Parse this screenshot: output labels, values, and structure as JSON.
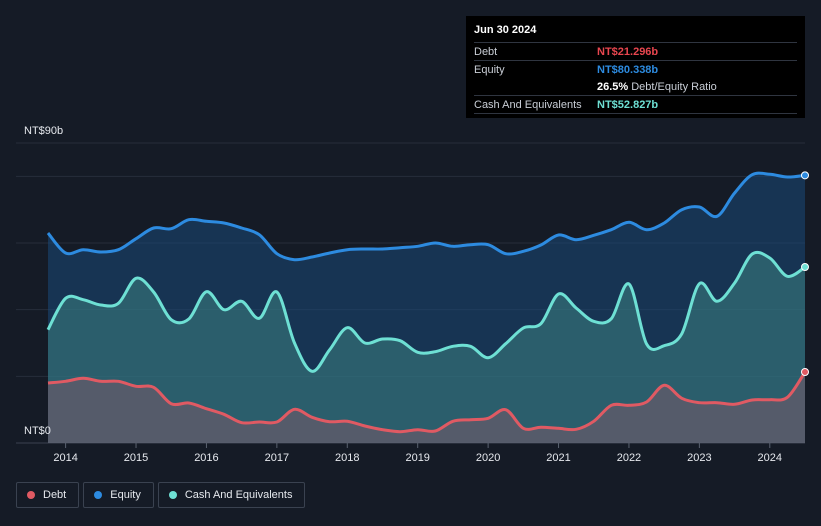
{
  "tooltip": {
    "date": "Jun 30 2024",
    "debt_label": "Debt",
    "debt_value": "NT$21.296b",
    "equity_label": "Equity",
    "equity_value": "NT$80.338b",
    "ratio_value": "26.5%",
    "ratio_label": "Debt/Equity Ratio",
    "cash_label": "Cash And Equivalents",
    "cash_value": "NT$52.827b"
  },
  "legend": [
    {
      "label": "Debt",
      "color": "#e05a63"
    },
    {
      "label": "Equity",
      "color": "#2d8be0"
    },
    {
      "label": "Cash And Equivalents",
      "color": "#6ee0d4"
    }
  ],
  "chart_data": {
    "type": "area",
    "y_top_label": "NT$90b",
    "y_bottom_label": "NT$0",
    "ylim": [
      0,
      90
    ],
    "xlim": [
      2013.75,
      2024.5
    ],
    "x_ticks": [
      "2014",
      "2015",
      "2016",
      "2017",
      "2018",
      "2019",
      "2020",
      "2021",
      "2022",
      "2023",
      "2024"
    ],
    "series": [
      {
        "name": "Debt",
        "color": "#e05a63",
        "x": [
          2013.75,
          2014.0,
          2014.25,
          2014.5,
          2014.75,
          2015.0,
          2015.25,
          2015.5,
          2015.75,
          2016.0,
          2016.25,
          2016.5,
          2016.75,
          2017.0,
          2017.25,
          2017.5,
          2017.75,
          2018.0,
          2018.25,
          2018.5,
          2018.75,
          2019.0,
          2019.25,
          2019.5,
          2019.75,
          2020.0,
          2020.25,
          2020.5,
          2020.75,
          2021.0,
          2021.25,
          2021.5,
          2021.75,
          2022.0,
          2022.25,
          2022.5,
          2022.75,
          2023.0,
          2023.25,
          2023.5,
          2023.75,
          2024.0,
          2024.25,
          2024.5
        ],
        "values": [
          18.0,
          18.5,
          19.4,
          18.5,
          18.5,
          17.0,
          16.7,
          11.8,
          12.0,
          10.3,
          8.6,
          6.1,
          6.3,
          6.3,
          10.1,
          7.7,
          6.4,
          6.5,
          5.1,
          4.0,
          3.4,
          4.0,
          3.6,
          6.5,
          7.0,
          7.4,
          10.0,
          4.4,
          4.7,
          4.4,
          4.1,
          6.5,
          11.3,
          11.3,
          12.3,
          17.3,
          13.4,
          12.1,
          12.1,
          11.6,
          12.9,
          13.0,
          13.7,
          21.3
        ]
      },
      {
        "name": "Equity",
        "color": "#2d8be0",
        "x": [
          2013.75,
          2014.0,
          2014.25,
          2014.5,
          2014.75,
          2015.0,
          2015.25,
          2015.5,
          2015.75,
          2016.0,
          2016.25,
          2016.5,
          2016.75,
          2017.0,
          2017.25,
          2017.5,
          2017.75,
          2018.0,
          2018.25,
          2018.5,
          2018.75,
          2019.0,
          2019.25,
          2019.5,
          2019.75,
          2020.0,
          2020.25,
          2020.5,
          2020.75,
          2021.0,
          2021.25,
          2021.5,
          2021.75,
          2022.0,
          2022.25,
          2022.5,
          2022.75,
          2023.0,
          2023.25,
          2023.5,
          2023.75,
          2024.0,
          2024.25,
          2024.5
        ],
        "values": [
          63.0,
          57.0,
          58.0,
          57.3,
          58.0,
          61.3,
          64.5,
          64.3,
          67.0,
          66.5,
          66.0,
          64.5,
          62.5,
          56.8,
          55.0,
          55.8,
          57.0,
          58.0,
          58.2,
          58.2,
          58.6,
          59.0,
          60.0,
          59.0,
          59.5,
          59.5,
          56.8,
          57.5,
          59.4,
          62.4,
          61.0,
          62.3,
          64.0,
          66.2,
          64.0,
          66.0,
          70.0,
          70.8,
          68.0,
          75.0,
          80.5,
          80.6,
          79.8,
          80.3
        ]
      },
      {
        "name": "Cash And Equivalents",
        "color": "#6ee0d4",
        "x": [
          2013.75,
          2014.0,
          2014.25,
          2014.5,
          2014.75,
          2015.0,
          2015.25,
          2015.5,
          2015.75,
          2016.0,
          2016.25,
          2016.5,
          2016.75,
          2017.0,
          2017.25,
          2017.5,
          2017.75,
          2018.0,
          2018.25,
          2018.5,
          2018.75,
          2019.0,
          2019.25,
          2019.5,
          2019.75,
          2020.0,
          2020.25,
          2020.5,
          2020.75,
          2021.0,
          2021.25,
          2021.5,
          2021.75,
          2022.0,
          2022.25,
          2022.5,
          2022.75,
          2023.0,
          2023.25,
          2023.5,
          2023.75,
          2024.0,
          2024.25,
          2024.5
        ],
        "values": [
          34.0,
          43.4,
          43.0,
          41.4,
          41.9,
          49.4,
          45.3,
          37.0,
          37.2,
          45.4,
          40.0,
          42.5,
          37.4,
          45.3,
          30.0,
          21.5,
          28.0,
          34.6,
          30.0,
          31.2,
          30.7,
          27.2,
          27.4,
          29.0,
          29.0,
          25.6,
          29.8,
          34.5,
          35.8,
          44.7,
          40.5,
          36.5,
          37.3,
          47.7,
          29.7,
          29.2,
          32.8,
          47.8,
          42.5,
          48.0,
          56.7,
          55.5,
          50.0,
          52.8
        ]
      }
    ]
  }
}
